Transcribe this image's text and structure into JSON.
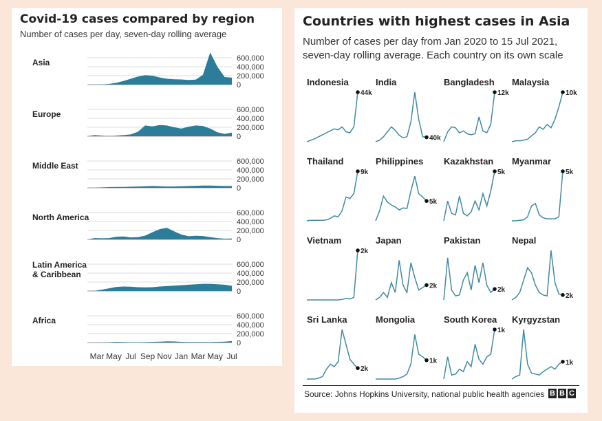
{
  "left": {
    "title": "Covid-19 cases compared by region",
    "subtitle": "Number of cases per day, seven-day rolling average",
    "yticks": [
      "600,000",
      "400,000",
      "200,000",
      "0"
    ],
    "xticks": [
      "Mar",
      "May",
      "Jul",
      "Sep",
      "Nov",
      "Jan",
      "Mar",
      "May",
      "Jul"
    ]
  },
  "right": {
    "title": "Countries with highest cases in Asia",
    "subtitle_line1": "Number of cases per day from Jan 2020 to 15 Jul 2021,",
    "subtitle_line2": "seven-day rolling average. Each country on its own scale"
  },
  "source": "Source: Johns Hopkins University, national public health agencies",
  "logo_letters": [
    "B",
    "B",
    "C"
  ],
  "colors": {
    "area_fill": "#2b7d99",
    "line": "#3f8aa4",
    "grid": "#dddddd",
    "text": "#222222",
    "background": "#fbe6da"
  },
  "chart_data": [
    {
      "type": "area",
      "x_labels": [
        "Mar",
        "May",
        "Jul",
        "Sep",
        "Nov",
        "Jan",
        "Mar",
        "May",
        "Jul"
      ],
      "ylim": [
        0,
        750000
      ],
      "series": [
        {
          "name": "Asia",
          "values": [
            0,
            2000,
            5000,
            15000,
            40000,
            80000,
            130000,
            180000,
            210000,
            200000,
            160000,
            130000,
            120000,
            115000,
            105000,
            110000,
            220000,
            720000,
            400000,
            170000,
            155000
          ]
        },
        {
          "name": "Europe",
          "values": [
            0,
            25000,
            10000,
            5000,
            10000,
            25000,
            40000,
            100000,
            240000,
            220000,
            250000,
            240000,
            200000,
            170000,
            210000,
            240000,
            230000,
            170000,
            90000,
            50000,
            80000
          ]
        },
        {
          "name": "Middle East",
          "values": [
            0,
            2000,
            10000,
            15000,
            20000,
            20000,
            25000,
            30000,
            35000,
            40000,
            35000,
            30000,
            30000,
            35000,
            40000,
            45000,
            50000,
            50000,
            45000,
            40000,
            40000
          ]
        },
        {
          "name": "North America",
          "values": [
            0,
            30000,
            25000,
            30000,
            60000,
            65000,
            45000,
            50000,
            85000,
            160000,
            230000,
            260000,
            180000,
            110000,
            70000,
            80000,
            75000,
            50000,
            30000,
            15000,
            20000
          ]
        },
        {
          "name": "Latin America & Caribbean",
          "values": [
            0,
            5000,
            30000,
            60000,
            90000,
            100000,
            95000,
            85000,
            80000,
            85000,
            100000,
            110000,
            120000,
            130000,
            140000,
            150000,
            160000,
            160000,
            150000,
            140000,
            115000
          ]
        },
        {
          "name": "Africa",
          "values": [
            0,
            1000,
            3000,
            8000,
            15000,
            12000,
            8000,
            7000,
            10000,
            15000,
            20000,
            28000,
            25000,
            15000,
            12000,
            12000,
            11000,
            12000,
            15000,
            20000,
            35000
          ]
        }
      ]
    },
    {
      "type": "line",
      "series": [
        {
          "name": "Indonesia",
          "label": "44k",
          "values": [
            0,
            3,
            6,
            10,
            14,
            18,
            22,
            26,
            24,
            30,
            20,
            18,
            30,
            100
          ]
        },
        {
          "name": "India",
          "label": "40k",
          "values": [
            0,
            3,
            10,
            20,
            30,
            23,
            13,
            8,
            10,
            40,
            100,
            45,
            10,
            9
          ]
        },
        {
          "name": "Bangladesh",
          "label": "12k",
          "values": [
            0,
            20,
            30,
            28,
            18,
            22,
            16,
            14,
            16,
            50,
            22,
            18,
            35,
            100
          ]
        },
        {
          "name": "Malaysia",
          "label": "10k",
          "values": [
            0,
            2,
            2,
            3,
            5,
            12,
            18,
            30,
            25,
            35,
            28,
            45,
            70,
            100
          ]
        },
        {
          "name": "Thailand",
          "label": "9k",
          "values": [
            0,
            1,
            1,
            1,
            1,
            2,
            5,
            10,
            8,
            20,
            48,
            45,
            55,
            100
          ]
        },
        {
          "name": "Philippines",
          "label": "5k",
          "values": [
            0,
            20,
            50,
            38,
            32,
            28,
            22,
            26,
            25,
            60,
            90,
            55,
            48,
            40
          ]
        },
        {
          "name": "Kazakhstan",
          "label": "5k",
          "values": [
            0,
            40,
            15,
            12,
            50,
            15,
            10,
            18,
            40,
            22,
            55,
            30,
            60,
            100
          ]
        },
        {
          "name": "Myanmar",
          "label": "5k",
          "values": [
            0,
            0,
            1,
            2,
            8,
            30,
            35,
            12,
            6,
            4,
            4,
            4,
            8,
            100
          ]
        },
        {
          "name": "Vietnam",
          "label": "2k",
          "values": [
            0,
            0,
            0,
            0,
            0,
            0,
            0,
            0,
            0,
            1,
            3,
            2,
            5,
            100
          ]
        },
        {
          "name": "Japan",
          "label": "2k",
          "values": [
            0,
            5,
            15,
            5,
            35,
            15,
            80,
            30,
            15,
            75,
            45,
            20,
            25,
            30
          ]
        },
        {
          "name": "Pakistan",
          "label": "2k",
          "values": [
            0,
            85,
            20,
            8,
            10,
            40,
            55,
            20,
            70,
            35,
            75,
            30,
            15,
            22
          ]
        },
        {
          "name": "Nepal",
          "label": "2k",
          "values": [
            0,
            5,
            15,
            40,
            65,
            55,
            30,
            15,
            10,
            8,
            100,
            35,
            12,
            10
          ]
        },
        {
          "name": "Sri Lanka",
          "label": "2k",
          "values": [
            0,
            0,
            0,
            2,
            5,
            20,
            30,
            25,
            35,
            100,
            70,
            40,
            30,
            22
          ]
        },
        {
          "name": "Mongolia",
          "label": "1k",
          "values": [
            0,
            0,
            0,
            0,
            0,
            0,
            2,
            5,
            10,
            30,
            90,
            50,
            45,
            38
          ]
        },
        {
          "name": "South Korea",
          "label": "1k",
          "values": [
            0,
            45,
            8,
            10,
            20,
            15,
            35,
            25,
            70,
            40,
            30,
            45,
            50,
            100
          ]
        },
        {
          "name": "Kyrgyzstan",
          "label": "1k",
          "values": [
            0,
            5,
            8,
            100,
            30,
            12,
            10,
            8,
            15,
            20,
            25,
            20,
            30,
            35
          ]
        }
      ]
    }
  ]
}
